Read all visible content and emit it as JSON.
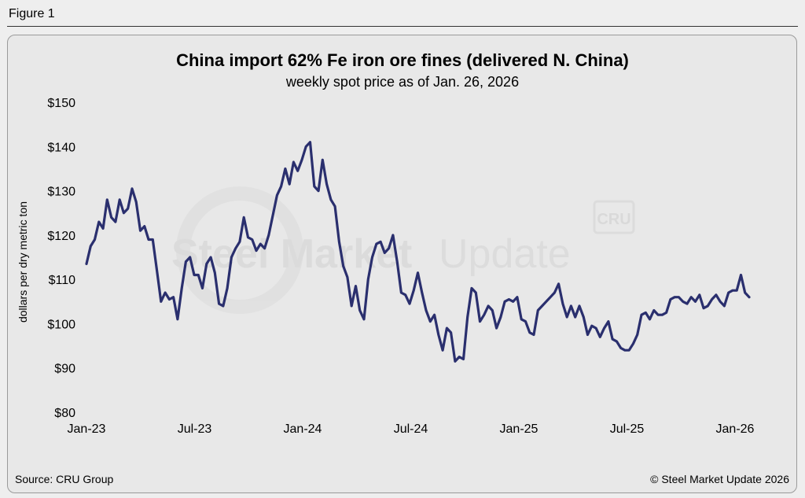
{
  "figure_label": "Figure 1",
  "source": "Source: CRU Group",
  "copyright": "© Steel Market Update 2026",
  "watermark": {
    "text_bold": "Steel Market",
    "text_light": " Update",
    "badge": "CRU"
  },
  "chart_data": {
    "type": "line",
    "title": "China import 62% Fe iron ore fines (delivered N. China)",
    "subtitle": "weekly spot price as of Jan. 26, 2026",
    "ylabel": "dollars per dry metric ton",
    "xlabel": "",
    "ylim": [
      80,
      150
    ],
    "yticks": [
      80,
      90,
      100,
      110,
      120,
      130,
      140,
      150
    ],
    "ytick_labels": [
      "$80",
      "$90",
      "$100",
      "$110",
      "$120",
      "$130",
      "$140",
      "$150"
    ],
    "xtick_labels": [
      "Jan-23",
      "Jul-23",
      "Jan-24",
      "Jul-24",
      "Jan-25",
      "Jul-25",
      "Jan-26"
    ],
    "grid": false,
    "line_color": "#2a2f6e",
    "series": [
      {
        "values": [
          113.5,
          117.5,
          119,
          123,
          121.5,
          128,
          124,
          123,
          128,
          125,
          126,
          130.5,
          127.5,
          121,
          122,
          119,
          119,
          112,
          105,
          107,
          105.5,
          106,
          101,
          108,
          114,
          115,
          111,
          111,
          108,
          113.5,
          115,
          111.5,
          104.5,
          104,
          108,
          115,
          117,
          118.5,
          124,
          119.5,
          119,
          116.5,
          118,
          117,
          120,
          124.5,
          129,
          131,
          135,
          131.5,
          136.5,
          134.5,
          137,
          140,
          141,
          131,
          130,
          137,
          131.5,
          128,
          126.5,
          118.5,
          113,
          110.5,
          104,
          108.5,
          103,
          101,
          110,
          115,
          118,
          118.5,
          116,
          117,
          120,
          114,
          107,
          106.5,
          104.5,
          107.5,
          111.5,
          107,
          103,
          100.5,
          102,
          97.5,
          94,
          99,
          98,
          91.5,
          92.5,
          92,
          101.5,
          108,
          107,
          100.5,
          102,
          104,
          103,
          99,
          101.5,
          105,
          105.5,
          105,
          106,
          101,
          100.5,
          98,
          97.5,
          103,
          104,
          105,
          106,
          107,
          109,
          104.5,
          101.5,
          104,
          101.5,
          104,
          101.5,
          97.5,
          99.5,
          99,
          97,
          99,
          100.5,
          96.5,
          96,
          94.5,
          94,
          94,
          95.5,
          97.5,
          102,
          102.5,
          101,
          103,
          102,
          102,
          102.5,
          105.5,
          106,
          106,
          105,
          104.5,
          106,
          105,
          106.5,
          103.5,
          104,
          105.5,
          106.5,
          105,
          104,
          107,
          107.5,
          107.5,
          111,
          107,
          106
        ]
      }
    ]
  }
}
